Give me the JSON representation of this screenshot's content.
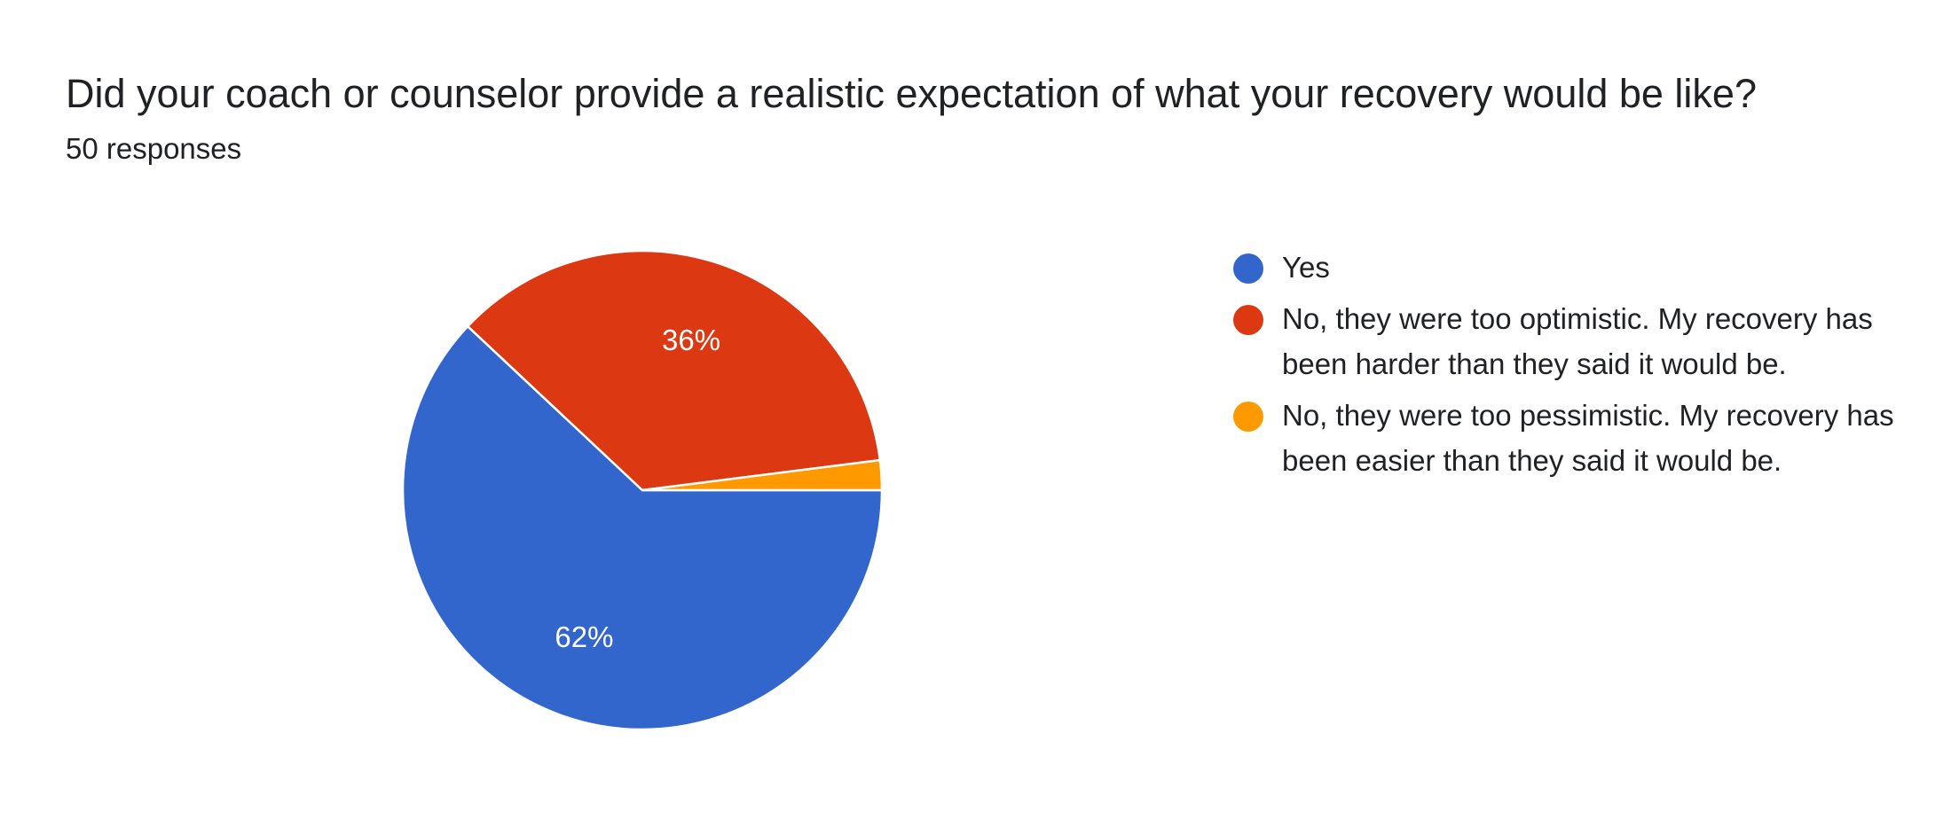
{
  "question": {
    "title": "Did your coach or counselor provide a realistic expectation of what your recovery would be like?",
    "responses": "50 responses"
  },
  "chart_data": {
    "type": "pie",
    "title": "Did your coach or counselor provide a realistic expectation of what your recovery would be like?",
    "legend_position": "right",
    "slices": [
      {
        "label": "Yes",
        "value": 62,
        "display": "62%",
        "color": "#3366cc"
      },
      {
        "label": "No, they were too optimistic. My recovery has been harder than they said it would be.",
        "value": 36,
        "display": "36%",
        "color": "#dc3912"
      },
      {
        "label": "No, they were too pessimistic. My recovery has been easier than they said it would be.",
        "value": 2,
        "display": "",
        "color": "#ff9900"
      }
    ]
  }
}
